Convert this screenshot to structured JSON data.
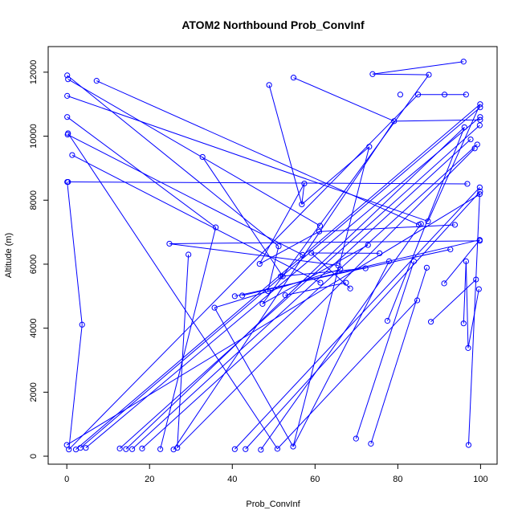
{
  "chart_data": {
    "type": "scatter",
    "title": "ATOM2 Northbound Prob_ConvInf",
    "xlabel": "Prob_ConvInf",
    "ylabel": "Altitude (m)",
    "xlim": [
      -4.5,
      104
    ],
    "ylim": [
      -250,
      12800
    ],
    "xticks": [
      0,
      20,
      40,
      60,
      80,
      100
    ],
    "yticks": [
      0,
      2000,
      4000,
      6000,
      8000,
      10000,
      12000
    ],
    "grid": false,
    "legend": "none",
    "series": [
      {
        "color": "#0000ff",
        "points": [
          [
            95.9,
            12330
          ],
          [
            73.9,
            11940
          ],
          [
            87.5,
            11920
          ],
          [
            0.1,
            11900
          ],
          [
            0.3,
            11780
          ],
          [
            7.2,
            11730
          ],
          [
            54.8,
            11830
          ],
          [
            48.9,
            11600
          ],
          [
            80.6,
            11300
          ],
          [
            84.9,
            11300
          ],
          [
            91.3,
            11300
          ],
          [
            96.5,
            11300
          ],
          [
            0.1,
            11260
          ],
          [
            99.9,
            11000
          ],
          [
            99.9,
            10900
          ],
          [
            99.9,
            10600
          ],
          [
            99.9,
            10510
          ],
          [
            0.1,
            10600
          ],
          [
            79.1,
            10470
          ],
          [
            99.8,
            10340
          ],
          [
            96.1,
            10280
          ],
          [
            0.3,
            10090
          ],
          [
            0.2,
            10050
          ],
          [
            97.6,
            9900
          ],
          [
            99.2,
            9740
          ],
          [
            98.6,
            9620
          ],
          [
            73.1,
            9670
          ],
          [
            1.3,
            9410
          ],
          [
            32.8,
            9350
          ],
          [
            0.1,
            8570
          ],
          [
            0.3,
            8570
          ],
          [
            57.4,
            8520
          ],
          [
            96.8,
            8510
          ],
          [
            99.8,
            8400
          ],
          [
            99.9,
            8270
          ],
          [
            99.8,
            8190
          ],
          [
            56.8,
            7870
          ],
          [
            87.3,
            7340
          ],
          [
            85.6,
            7260
          ],
          [
            85.1,
            7230
          ],
          [
            61.2,
            7200
          ],
          [
            36.0,
            7150
          ],
          [
            93.8,
            7230
          ],
          [
            61.0,
            7020
          ],
          [
            99.8,
            6760
          ],
          [
            99.8,
            6730
          ],
          [
            24.8,
            6640
          ],
          [
            51.2,
            6560
          ],
          [
            72.8,
            6600
          ],
          [
            92.7,
            6460
          ],
          [
            59.1,
            6350
          ],
          [
            75.6,
            6340
          ],
          [
            29.4,
            6300
          ],
          [
            57.0,
            6290
          ],
          [
            96.5,
            6090
          ],
          [
            83.9,
            6090
          ],
          [
            77.9,
            6090
          ],
          [
            46.6,
            6010
          ],
          [
            65.6,
            5960
          ],
          [
            72.2,
            5870
          ],
          [
            87.0,
            5890
          ],
          [
            66.1,
            5840
          ],
          [
            51.7,
            5620
          ],
          [
            52.2,
            5620
          ],
          [
            98.9,
            5520
          ],
          [
            61.3,
            5420
          ],
          [
            67.5,
            5420
          ],
          [
            91.2,
            5400
          ],
          [
            68.5,
            5240
          ],
          [
            99.6,
            5220
          ],
          [
            48.6,
            5160
          ],
          [
            52.8,
            5030
          ],
          [
            42.4,
            5020
          ],
          [
            40.6,
            5000
          ],
          [
            84.7,
            4870
          ],
          [
            47.3,
            4760
          ],
          [
            35.7,
            4640
          ],
          [
            77.5,
            4230
          ],
          [
            88.0,
            4200
          ],
          [
            95.9,
            4150
          ],
          [
            3.7,
            4110
          ],
          [
            97.0,
            3380
          ],
          [
            69.9,
            550
          ],
          [
            73.5,
            390
          ],
          [
            54.7,
            300
          ],
          [
            97.1,
            350
          ],
          [
            0.0,
            350
          ],
          [
            0.5,
            210
          ],
          [
            2.2,
            210
          ],
          [
            3.3,
            260
          ],
          [
            4.6,
            260
          ],
          [
            12.8,
            240
          ],
          [
            14.3,
            220
          ],
          [
            15.8,
            220
          ],
          [
            18.2,
            240
          ],
          [
            22.6,
            220
          ],
          [
            25.8,
            210
          ],
          [
            26.7,
            260
          ],
          [
            40.6,
            220
          ],
          [
            43.2,
            220
          ],
          [
            46.9,
            200
          ],
          [
            50.9,
            230
          ]
        ],
        "segments": [
          [
            [
              95.9,
              12330
            ],
            [
              73.9,
              11940
            ]
          ],
          [
            [
              73.9,
              11940
            ],
            [
              87.5,
              11920
            ]
          ],
          [
            [
              87.5,
              11920
            ],
            [
              47.3,
              4760
            ]
          ],
          [
            [
              0.1,
              11900
            ],
            [
              51.2,
              6560
            ]
          ],
          [
            [
              0.3,
              11780
            ],
            [
              61.2,
              7200
            ]
          ],
          [
            [
              7.2,
              11730
            ],
            [
              85.1,
              7230
            ]
          ],
          [
            [
              54.8,
              11830
            ],
            [
              79.1,
              10470
            ]
          ],
          [
            [
              79.1,
              10470
            ],
            [
              25.8,
              210
            ]
          ],
          [
            [
              48.9,
              11600
            ],
            [
              56.8,
              7870
            ]
          ],
          [
            [
              56.8,
              7870
            ],
            [
              73.1,
              9670
            ]
          ],
          [
            [
              73.1,
              9670
            ],
            [
              54.7,
              300
            ]
          ],
          [
            [
              84.9,
              11300
            ],
            [
              96.5,
              11300
            ]
          ],
          [
            [
              84.9,
              11300
            ],
            [
              0.5,
              210
            ]
          ],
          [
            [
              0.1,
              11260
            ],
            [
              87.3,
              7340
            ]
          ],
          [
            [
              87.3,
              7340
            ],
            [
              99.9,
              11000
            ]
          ],
          [
            [
              99.9,
              11000
            ],
            [
              2.2,
              210
            ]
          ],
          [
            [
              99.9,
              10900
            ],
            [
              3.3,
              260
            ]
          ],
          [
            [
              99.9,
              10600
            ],
            [
              4.6,
              260
            ]
          ],
          [
            [
              99.9,
              10510
            ],
            [
              79.1,
              10470
            ]
          ],
          [
            [
              0.1,
              10600
            ],
            [
              36.0,
              7150
            ]
          ],
          [
            [
              36.0,
              7150
            ],
            [
              22.6,
              220
            ]
          ],
          [
            [
              99.8,
              10340
            ],
            [
              12.8,
              240
            ]
          ],
          [
            [
              96.1,
              10280
            ],
            [
              14.3,
              220
            ]
          ],
          [
            [
              0.3,
              10090
            ],
            [
              50.9,
              230
            ]
          ],
          [
            [
              0.2,
              10050
            ],
            [
              57.0,
              6290
            ]
          ],
          [
            [
              97.6,
              9900
            ],
            [
              15.8,
              220
            ]
          ],
          [
            [
              99.2,
              9740
            ],
            [
              18.2,
              240
            ]
          ],
          [
            [
              98.6,
              9620
            ],
            [
              26.7,
              260
            ]
          ],
          [
            [
              1.3,
              9410
            ],
            [
              61.3,
              5420
            ]
          ],
          [
            [
              32.8,
              9350
            ],
            [
              52.2,
              5620
            ]
          ],
          [
            [
              0.1,
              8570
            ],
            [
              3.7,
              4110
            ]
          ],
          [
            [
              3.7,
              4110
            ],
            [
              0.5,
              210
            ]
          ],
          [
            [
              0.3,
              8570
            ],
            [
              96.8,
              8510
            ]
          ],
          [
            [
              57.4,
              8520
            ],
            [
              56.8,
              7870
            ]
          ],
          [
            [
              99.8,
              8400
            ],
            [
              40.6,
              220
            ]
          ],
          [
            [
              99.9,
              8270
            ],
            [
              43.2,
              220
            ]
          ],
          [
            [
              99.8,
              8190
            ],
            [
              97.1,
              350
            ]
          ],
          [
            [
              85.6,
              7260
            ],
            [
              46.9,
              200
            ]
          ],
          [
            [
              93.8,
              7230
            ],
            [
              61.0,
              7020
            ]
          ],
          [
            [
              61.0,
              7020
            ],
            [
              46.6,
              6010
            ]
          ],
          [
            [
              46.6,
              6010
            ],
            [
              57.4,
              8520
            ]
          ],
          [
            [
              99.8,
              6760
            ],
            [
              42.4,
              5020
            ]
          ],
          [
            [
              99.8,
              6730
            ],
            [
              24.8,
              6640
            ]
          ],
          [
            [
              24.8,
              6640
            ],
            [
              65.6,
              5960
            ]
          ],
          [
            [
              51.2,
              6560
            ],
            [
              48.6,
              5160
            ]
          ],
          [
            [
              72.8,
              6600
            ],
            [
              47.3,
              4760
            ]
          ],
          [
            [
              92.7,
              6460
            ],
            [
              40.6,
              5000
            ]
          ],
          [
            [
              59.1,
              6350
            ],
            [
              75.6,
              6340
            ]
          ],
          [
            [
              29.4,
              6300
            ],
            [
              26.7,
              260
            ]
          ],
          [
            [
              96.5,
              6090
            ],
            [
              97.0,
              3380
            ]
          ],
          [
            [
              96.5,
              6090
            ],
            [
              95.9,
              4150
            ]
          ],
          [
            [
              83.9,
              6090
            ],
            [
              69.9,
              550
            ]
          ],
          [
            [
              77.9,
              6090
            ],
            [
              54.7,
              300
            ]
          ],
          [
            [
              66.1,
              5840
            ],
            [
              35.7,
              4640
            ]
          ],
          [
            [
              72.2,
              5870
            ],
            [
              51.7,
              5620
            ]
          ],
          [
            [
              87.0,
              5890
            ],
            [
              73.5,
              390
            ]
          ],
          [
            [
              98.9,
              5520
            ],
            [
              88.0,
              4200
            ]
          ],
          [
            [
              99.6,
              5220
            ],
            [
              97.0,
              3380
            ]
          ],
          [
            [
              91.2,
              5400
            ],
            [
              99.8,
              6760
            ]
          ],
          [
            [
              68.5,
              5240
            ],
            [
              59.1,
              6350
            ]
          ],
          [
            [
              52.8,
              5030
            ],
            [
              67.5,
              5420
            ]
          ],
          [
            [
              84.7,
              4870
            ],
            [
              50.9,
              230
            ]
          ],
          [
            [
              77.5,
              4230
            ],
            [
              96.1,
              10280
            ]
          ],
          [
            [
              35.7,
              4640
            ],
            [
              54.7,
              300
            ]
          ],
          [
            [
              99.9,
              8190
            ],
            [
              0.0,
              350
            ]
          ]
        ]
      }
    ]
  }
}
